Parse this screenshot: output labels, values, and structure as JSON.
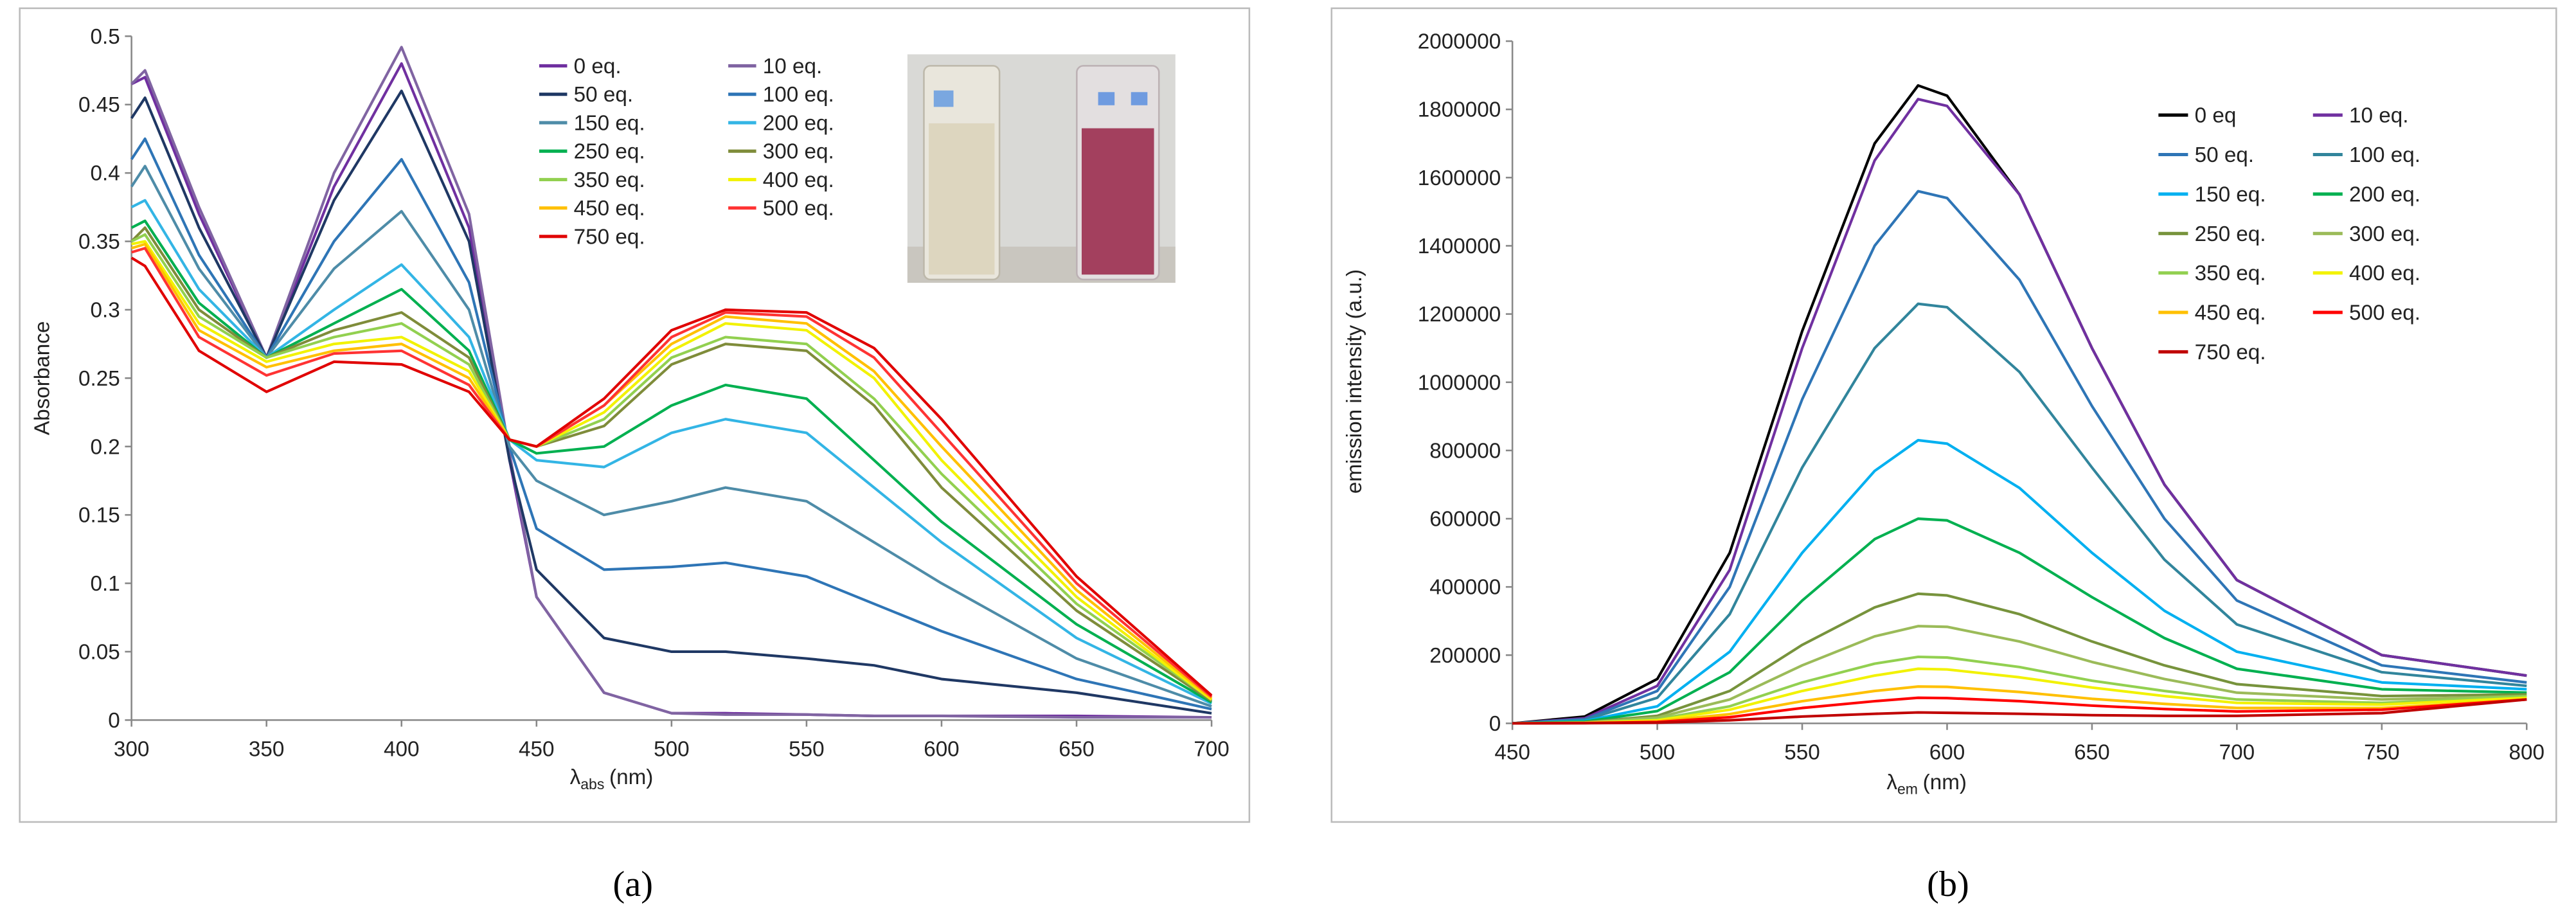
{
  "chart_data": [
    {
      "type": "line",
      "panel_label": "(a)",
      "ylabel": "Absorbance",
      "xlabel": {
        "symbol": "λ",
        "subscript": "abs",
        "unit": "(nm)"
      },
      "x": [
        300,
        305,
        325,
        350,
        375,
        400,
        425,
        440,
        450,
        475,
        500,
        520,
        550,
        575,
        600,
        650,
        700
      ],
      "xlim": [
        300,
        700
      ],
      "xticks": [
        300,
        350,
        400,
        450,
        500,
        550,
        600,
        650,
        700
      ],
      "ylim": [
        0,
        0.5
      ],
      "yticks": [
        0,
        0.05,
        0.1,
        0.15,
        0.2,
        0.25,
        0.3,
        0.35,
        0.4,
        0.45,
        0.5
      ],
      "legend_columns": 2,
      "legend": "upper center",
      "grid": false,
      "series": [
        {
          "name": "0 eq.",
          "color": "#7030a0",
          "values": [
            0.465,
            0.47,
            0.37,
            0.265,
            0.39,
            0.48,
            0.36,
            0.19,
            0.09,
            0.02,
            0.005,
            0.005,
            0.004,
            0.003,
            0.003,
            0.003,
            0.002
          ]
        },
        {
          "name": "10 eq.",
          "color": "#8064a2",
          "values": [
            0.465,
            0.475,
            0.375,
            0.265,
            0.4,
            0.492,
            0.37,
            0.195,
            0.09,
            0.02,
            0.005,
            0.004,
            0.004,
            0.003,
            0.003,
            0.002,
            0.002
          ]
        },
        {
          "name": "50 eq.",
          "color": "#1f3864",
          "values": [
            0.44,
            0.455,
            0.36,
            0.265,
            0.38,
            0.46,
            0.35,
            0.19,
            0.11,
            0.06,
            0.05,
            0.05,
            0.045,
            0.04,
            0.03,
            0.02,
            0.005
          ]
        },
        {
          "name": "100 eq.",
          "color": "#2e75b6",
          "values": [
            0.41,
            0.425,
            0.34,
            0.265,
            0.35,
            0.41,
            0.32,
            0.2,
            0.14,
            0.11,
            0.112,
            0.115,
            0.105,
            0.085,
            0.065,
            0.03,
            0.008
          ]
        },
        {
          "name": "150 eq.",
          "color": "#4e8ca8",
          "values": [
            0.39,
            0.405,
            0.33,
            0.265,
            0.33,
            0.372,
            0.3,
            0.2,
            0.175,
            0.15,
            0.16,
            0.17,
            0.16,
            0.13,
            0.1,
            0.045,
            0.01
          ]
        },
        {
          "name": "200 eq.",
          "color": "#33b5e5",
          "values": [
            0.375,
            0.38,
            0.315,
            0.265,
            0.3,
            0.333,
            0.28,
            0.205,
            0.19,
            0.185,
            0.21,
            0.22,
            0.21,
            0.17,
            0.13,
            0.06,
            0.012
          ]
        },
        {
          "name": "250 eq.",
          "color": "#00b050",
          "values": [
            0.36,
            0.365,
            0.305,
            0.265,
            0.29,
            0.315,
            0.27,
            0.205,
            0.195,
            0.2,
            0.23,
            0.245,
            0.235,
            0.19,
            0.145,
            0.07,
            0.013
          ]
        },
        {
          "name": "300 eq.",
          "color": "#7f8c3a",
          "values": [
            0.35,
            0.36,
            0.3,
            0.265,
            0.285,
            0.298,
            0.265,
            0.205,
            0.2,
            0.215,
            0.26,
            0.275,
            0.27,
            0.23,
            0.17,
            0.08,
            0.014
          ]
        },
        {
          "name": "350 eq.",
          "color": "#92d050",
          "values": [
            0.35,
            0.355,
            0.295,
            0.265,
            0.28,
            0.29,
            0.26,
            0.205,
            0.2,
            0.22,
            0.265,
            0.28,
            0.275,
            0.235,
            0.18,
            0.085,
            0.015
          ]
        },
        {
          "name": "400 eq.",
          "color": "#f2f200",
          "values": [
            0.348,
            0.35,
            0.29,
            0.262,
            0.275,
            0.28,
            0.255,
            0.205,
            0.2,
            0.225,
            0.27,
            0.29,
            0.285,
            0.25,
            0.19,
            0.09,
            0.015
          ]
        },
        {
          "name": "450 eq.",
          "color": "#ffc000",
          "values": [
            0.345,
            0.348,
            0.285,
            0.258,
            0.27,
            0.275,
            0.25,
            0.205,
            0.2,
            0.23,
            0.275,
            0.295,
            0.29,
            0.255,
            0.2,
            0.095,
            0.016
          ]
        },
        {
          "name": "500 eq.",
          "color": "#ff3333",
          "values": [
            0.342,
            0.345,
            0.28,
            0.252,
            0.268,
            0.27,
            0.245,
            0.205,
            0.2,
            0.23,
            0.28,
            0.298,
            0.295,
            0.265,
            0.21,
            0.1,
            0.017
          ]
        },
        {
          "name": "750 eq.",
          "color": "#e00000",
          "values": [
            0.338,
            0.332,
            0.27,
            0.24,
            0.262,
            0.26,
            0.24,
            0.205,
            0.2,
            0.235,
            0.285,
            0.3,
            0.298,
            0.272,
            0.22,
            0.105,
            0.018
          ]
        }
      ]
    },
    {
      "type": "line",
      "panel_label": "(b)",
      "ylabel": "emission intensity (a.u.)",
      "xlabel": {
        "symbol": "λ",
        "subscript": "em",
        "unit": "(nm)"
      },
      "x": [
        450,
        475,
        500,
        525,
        550,
        575,
        590,
        600,
        625,
        650,
        675,
        700,
        750,
        800
      ],
      "xlim": [
        450,
        800
      ],
      "xticks": [
        450,
        500,
        550,
        600,
        650,
        700,
        750,
        800
      ],
      "ylim": [
        0,
        2000000
      ],
      "yticks": [
        0,
        200000,
        400000,
        600000,
        800000,
        1000000,
        1200000,
        1400000,
        1600000,
        1800000,
        2000000
      ],
      "legend_columns": 2,
      "legend": "upper right",
      "grid": false,
      "series": [
        {
          "name": "0 eq",
          "color": "#000000",
          "values": [
            0,
            20000,
            130000,
            500000,
            1150000,
            1700000,
            1870000,
            1840000,
            1550000,
            1100000,
            700000,
            420000,
            200000,
            140000
          ]
        },
        {
          "name": "10 eq.",
          "color": "#7030a0",
          "values": [
            0,
            15000,
            110000,
            450000,
            1100000,
            1650000,
            1830000,
            1810000,
            1550000,
            1100000,
            700000,
            420000,
            200000,
            140000
          ]
        },
        {
          "name": "50 eq.",
          "color": "#2e75b6",
          "values": [
            0,
            12000,
            95000,
            400000,
            950000,
            1400000,
            1560000,
            1540000,
            1300000,
            930000,
            600000,
            360000,
            170000,
            120000
          ]
        },
        {
          "name": "100 eq.",
          "color": "#31859c",
          "values": [
            0,
            10000,
            75000,
            320000,
            750000,
            1100000,
            1230000,
            1220000,
            1030000,
            750000,
            480000,
            290000,
            150000,
            110000
          ]
        },
        {
          "name": "150 eq.",
          "color": "#00b0f0",
          "values": [
            0,
            7000,
            50000,
            210000,
            500000,
            740000,
            830000,
            820000,
            690000,
            500000,
            330000,
            210000,
            120000,
            100000
          ]
        },
        {
          "name": "200 eq.",
          "color": "#00b050",
          "values": [
            0,
            5000,
            36000,
            150000,
            360000,
            540000,
            600000,
            595000,
            500000,
            370000,
            250000,
            160000,
            100000,
            90000
          ]
        },
        {
          "name": "250 eq.",
          "color": "#77933c",
          "values": [
            0,
            3000,
            22000,
            95000,
            230000,
            340000,
            380000,
            375000,
            320000,
            240000,
            170000,
            115000,
            80000,
            85000
          ]
        },
        {
          "name": "300 eq.",
          "color": "#9bbb59",
          "values": [
            0,
            2500,
            17000,
            70000,
            170000,
            255000,
            285000,
            283000,
            240000,
            180000,
            130000,
            90000,
            70000,
            80000
          ]
        },
        {
          "name": "350 eq.",
          "color": "#92d050",
          "values": [
            0,
            2000,
            12000,
            50000,
            120000,
            175000,
            195000,
            193000,
            165000,
            125000,
            95000,
            70000,
            60000,
            80000
          ]
        },
        {
          "name": "400 eq.",
          "color": "#f2f200",
          "values": [
            0,
            1500,
            9000,
            40000,
            95000,
            140000,
            160000,
            158000,
            135000,
            105000,
            80000,
            60000,
            55000,
            75000
          ]
        },
        {
          "name": "450 eq.",
          "color": "#ffc000",
          "values": [
            0,
            1000,
            6000,
            27000,
            65000,
            95000,
            108000,
            107000,
            92000,
            72000,
            57000,
            45000,
            45000,
            70000
          ]
        },
        {
          "name": "500 eq.",
          "color": "#ff0000",
          "values": [
            0,
            800,
            4000,
            18000,
            45000,
            65000,
            75000,
            74000,
            65000,
            52000,
            42000,
            35000,
            40000,
            70000
          ]
        },
        {
          "name": "750 eq.",
          "color": "#c00000",
          "values": [
            0,
            500,
            2000,
            9000,
            20000,
            28000,
            32000,
            31000,
            28000,
            24000,
            22000,
            22000,
            30000,
            70000
          ]
        }
      ]
    }
  ]
}
